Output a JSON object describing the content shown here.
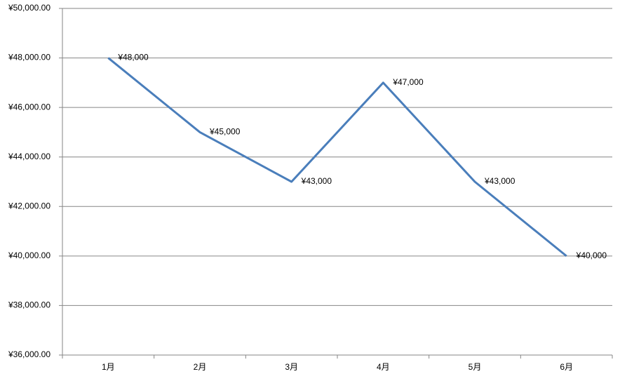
{
  "chart_data": {
    "type": "line",
    "categories": [
      "1月",
      "2月",
      "3月",
      "4月",
      "5月",
      "6月"
    ],
    "series": [
      {
        "color": "#4a7ebb",
        "values": [
          48000,
          45000,
          43000,
          47000,
          43000,
          40000
        ],
        "value_labels": [
          "¥48,000",
          "¥45,000",
          "¥43,000",
          "¥47,000",
          "¥43,000",
          "¥40,000"
        ]
      }
    ],
    "ylim": [
      36000,
      50000
    ],
    "yticks": [
      {
        "value": 36000,
        "label": "¥36,000.00"
      },
      {
        "value": 38000,
        "label": "¥38,000.00"
      },
      {
        "value": 40000,
        "label": "¥40,000.00"
      },
      {
        "value": 42000,
        "label": "¥42,000.00"
      },
      {
        "value": 44000,
        "label": "¥44,000.00"
      },
      {
        "value": 46000,
        "label": "¥46,000.00"
      },
      {
        "value": 48000,
        "label": "¥48,000.00"
      },
      {
        "value": 50000,
        "label": "¥50,000.00"
      }
    ],
    "grid": true
  }
}
